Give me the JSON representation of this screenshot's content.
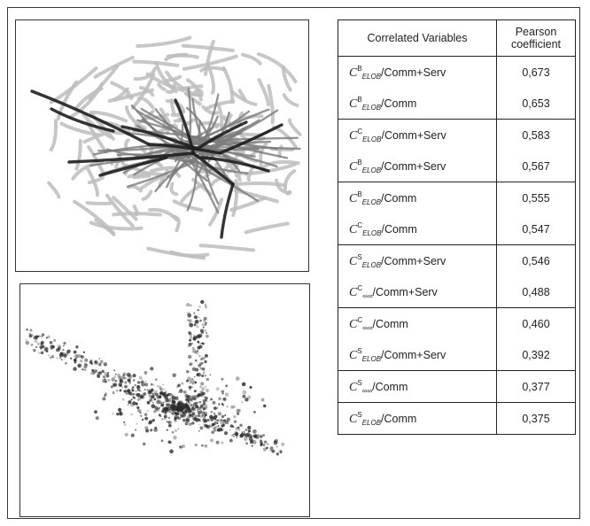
{
  "figure": {
    "table": {
      "headers": [
        "Correlated Variables",
        "Pearson coefficient"
      ],
      "rows": [
        {
          "symbol": "C",
          "sup": "B",
          "sub": "ELOB",
          "target": "/Comm+Serv",
          "value": "0,673",
          "group_end": false
        },
        {
          "symbol": "C",
          "sup": "B",
          "sub": "ELOB",
          "target": "/Comm",
          "value": "0,653",
          "group_end": true
        },
        {
          "symbol": "C",
          "sup": "C",
          "sub": "ELOB",
          "target": "/Comm+Serv",
          "value": "0,583",
          "group_end": false
        },
        {
          "symbol": "C",
          "sup": "B",
          "sub": "ELOB",
          "target": "/Comm+Serv",
          "value": "0,567",
          "group_end": true
        },
        {
          "symbol": "C",
          "sup": "B",
          "sub": "ELOB",
          "target": "/Comm",
          "value": "0,555",
          "group_end": false
        },
        {
          "symbol": "C",
          "sup": "C",
          "sub": "ELOB",
          "target": "/Comm",
          "value": "0,547",
          "group_end": true
        },
        {
          "symbol": "C",
          "sup": "S",
          "sub": "ELOB",
          "target": "/Comm+Serv",
          "value": "0,546",
          "group_end": false
        },
        {
          "symbol": "C",
          "sup": "C",
          "sub": "∞∞",
          "target": "/Comm+Serv",
          "value": "0,488",
          "group_end": true
        },
        {
          "symbol": "C",
          "sup": "C",
          "sub": "∞∞",
          "target": "/Comm",
          "value": "0,460",
          "group_end": false
        },
        {
          "symbol": "C",
          "sup": "S",
          "sub": "ELOB",
          "target": "/Comm+Serv",
          "value": "0,392",
          "group_end": true
        },
        {
          "symbol": "C",
          "sup": "S",
          "sub": "∞∞",
          "target": "/Comm",
          "value": "0,377",
          "group_end": true
        },
        {
          "symbol": "C",
          "sup": "S",
          "sub": "ELOB",
          "target": "/Comm",
          "value": "0,375",
          "group_end": true
        }
      ]
    },
    "colors": {
      "street_light": "#bdbdbd",
      "street_mid": "#7a7a7a",
      "street_dark": "#1e1e1e",
      "point_dark": "#2a2a2a"
    }
  }
}
